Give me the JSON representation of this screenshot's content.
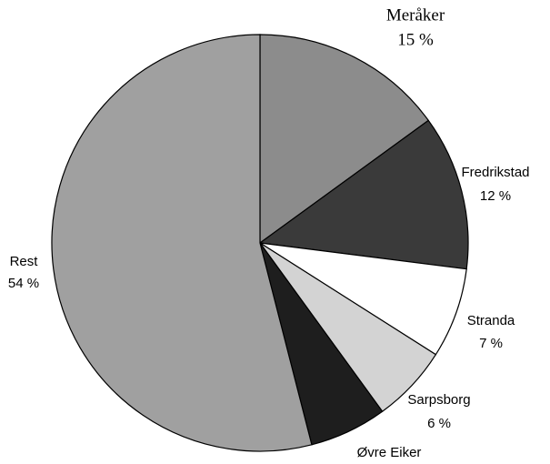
{
  "chart_data": {
    "type": "pie",
    "categories": [
      "Meråker",
      "Fredrikstad",
      "Stranda",
      "Sarpsborg",
      "Øvre Eiker",
      "Rest"
    ],
    "values": [
      15,
      12,
      7,
      6,
      6,
      54
    ],
    "value_labels": [
      "15 %",
      "12 %",
      "7 %",
      "6 %",
      null,
      "54 %"
    ],
    "colors": [
      "#8c8c8c",
      "#3a3a3a",
      "#ffffff",
      "#d3d3d3",
      "#1e1e1e",
      "#a0a0a0"
    ]
  }
}
